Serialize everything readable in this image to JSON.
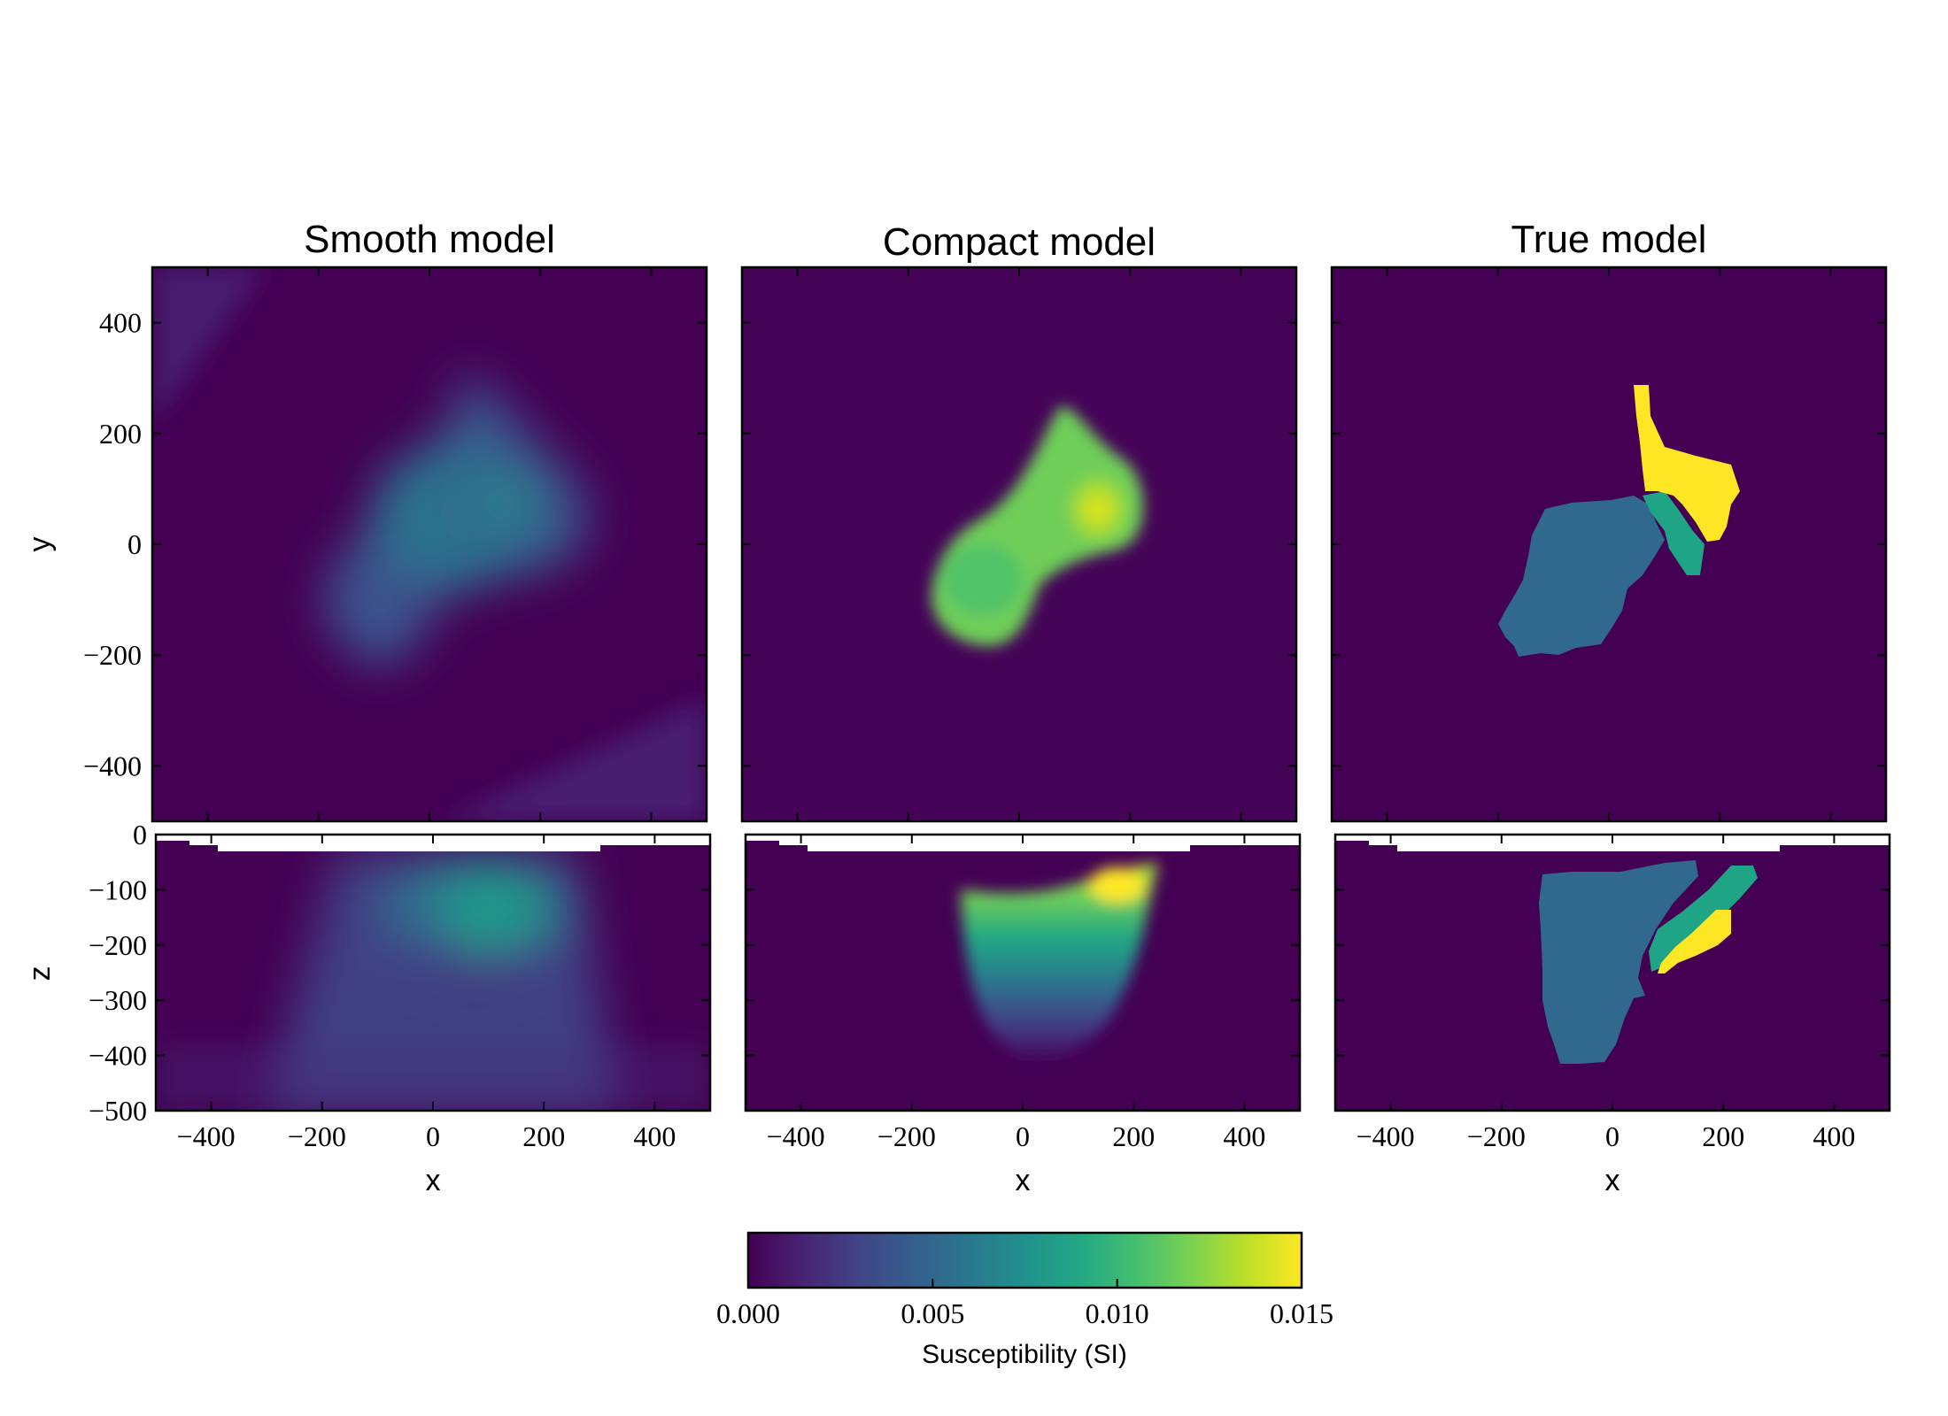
{
  "figure": {
    "colorbar": {
      "label": "Susceptibility (SI)",
      "ticks": [
        "0.000",
        "0.005",
        "0.010",
        "0.015"
      ],
      "range": [
        0,
        0.015
      ],
      "colormap": "viridis"
    }
  },
  "chart_data": [
    {
      "type": "heatmap",
      "title": "Smooth model",
      "view": "plan",
      "xlabel": "",
      "ylabel": "y",
      "xlim": [
        -500,
        500
      ],
      "ylim": [
        -500,
        500
      ],
      "yticks": [
        "400",
        "200",
        "0",
        "−200",
        "−400"
      ],
      "peak_value": 0.0085,
      "anomaly_center": [
        90,
        70
      ]
    },
    {
      "type": "heatmap",
      "title": "Compact model",
      "view": "plan",
      "xlabel": "",
      "ylabel": "",
      "xlim": [
        -500,
        500
      ],
      "ylim": [
        -500,
        500
      ],
      "peak_value": 0.0145,
      "anomaly_center": [
        140,
        60
      ]
    },
    {
      "type": "heatmap",
      "title": "True model",
      "view": "plan",
      "xlabel": "",
      "ylabel": "",
      "xlim": [
        -500,
        500
      ],
      "ylim": [
        -500,
        500
      ],
      "units": [
        {
          "value": 0.005
        },
        {
          "value": 0.01
        },
        {
          "value": 0.015
        }
      ]
    },
    {
      "type": "heatmap",
      "title": "",
      "view": "section",
      "xlabel": "x",
      "ylabel": "z",
      "xlim": [
        -500,
        500
      ],
      "ylim": [
        -500,
        0
      ],
      "xticks": [
        "−400",
        "−200",
        "0",
        "200",
        "400"
      ],
      "yticks": [
        "0",
        "−100",
        "−200",
        "−300",
        "−400",
        "−500"
      ],
      "peak_value": 0.0085
    },
    {
      "type": "heatmap",
      "title": "",
      "view": "section",
      "xlabel": "x",
      "ylabel": "",
      "xlim": [
        -500,
        500
      ],
      "ylim": [
        -500,
        0
      ],
      "xticks": [
        "−400",
        "−200",
        "0",
        "200",
        "400"
      ],
      "peak_value": 0.015
    },
    {
      "type": "heatmap",
      "title": "",
      "view": "section",
      "xlabel": "x",
      "ylabel": "",
      "xlim": [
        -500,
        500
      ],
      "ylim": [
        -500,
        0
      ],
      "xticks": [
        "−400",
        "−200",
        "0",
        "200",
        "400"
      ],
      "units": [
        {
          "value": 0.005
        },
        {
          "value": 0.01
        },
        {
          "value": 0.015
        }
      ]
    }
  ]
}
